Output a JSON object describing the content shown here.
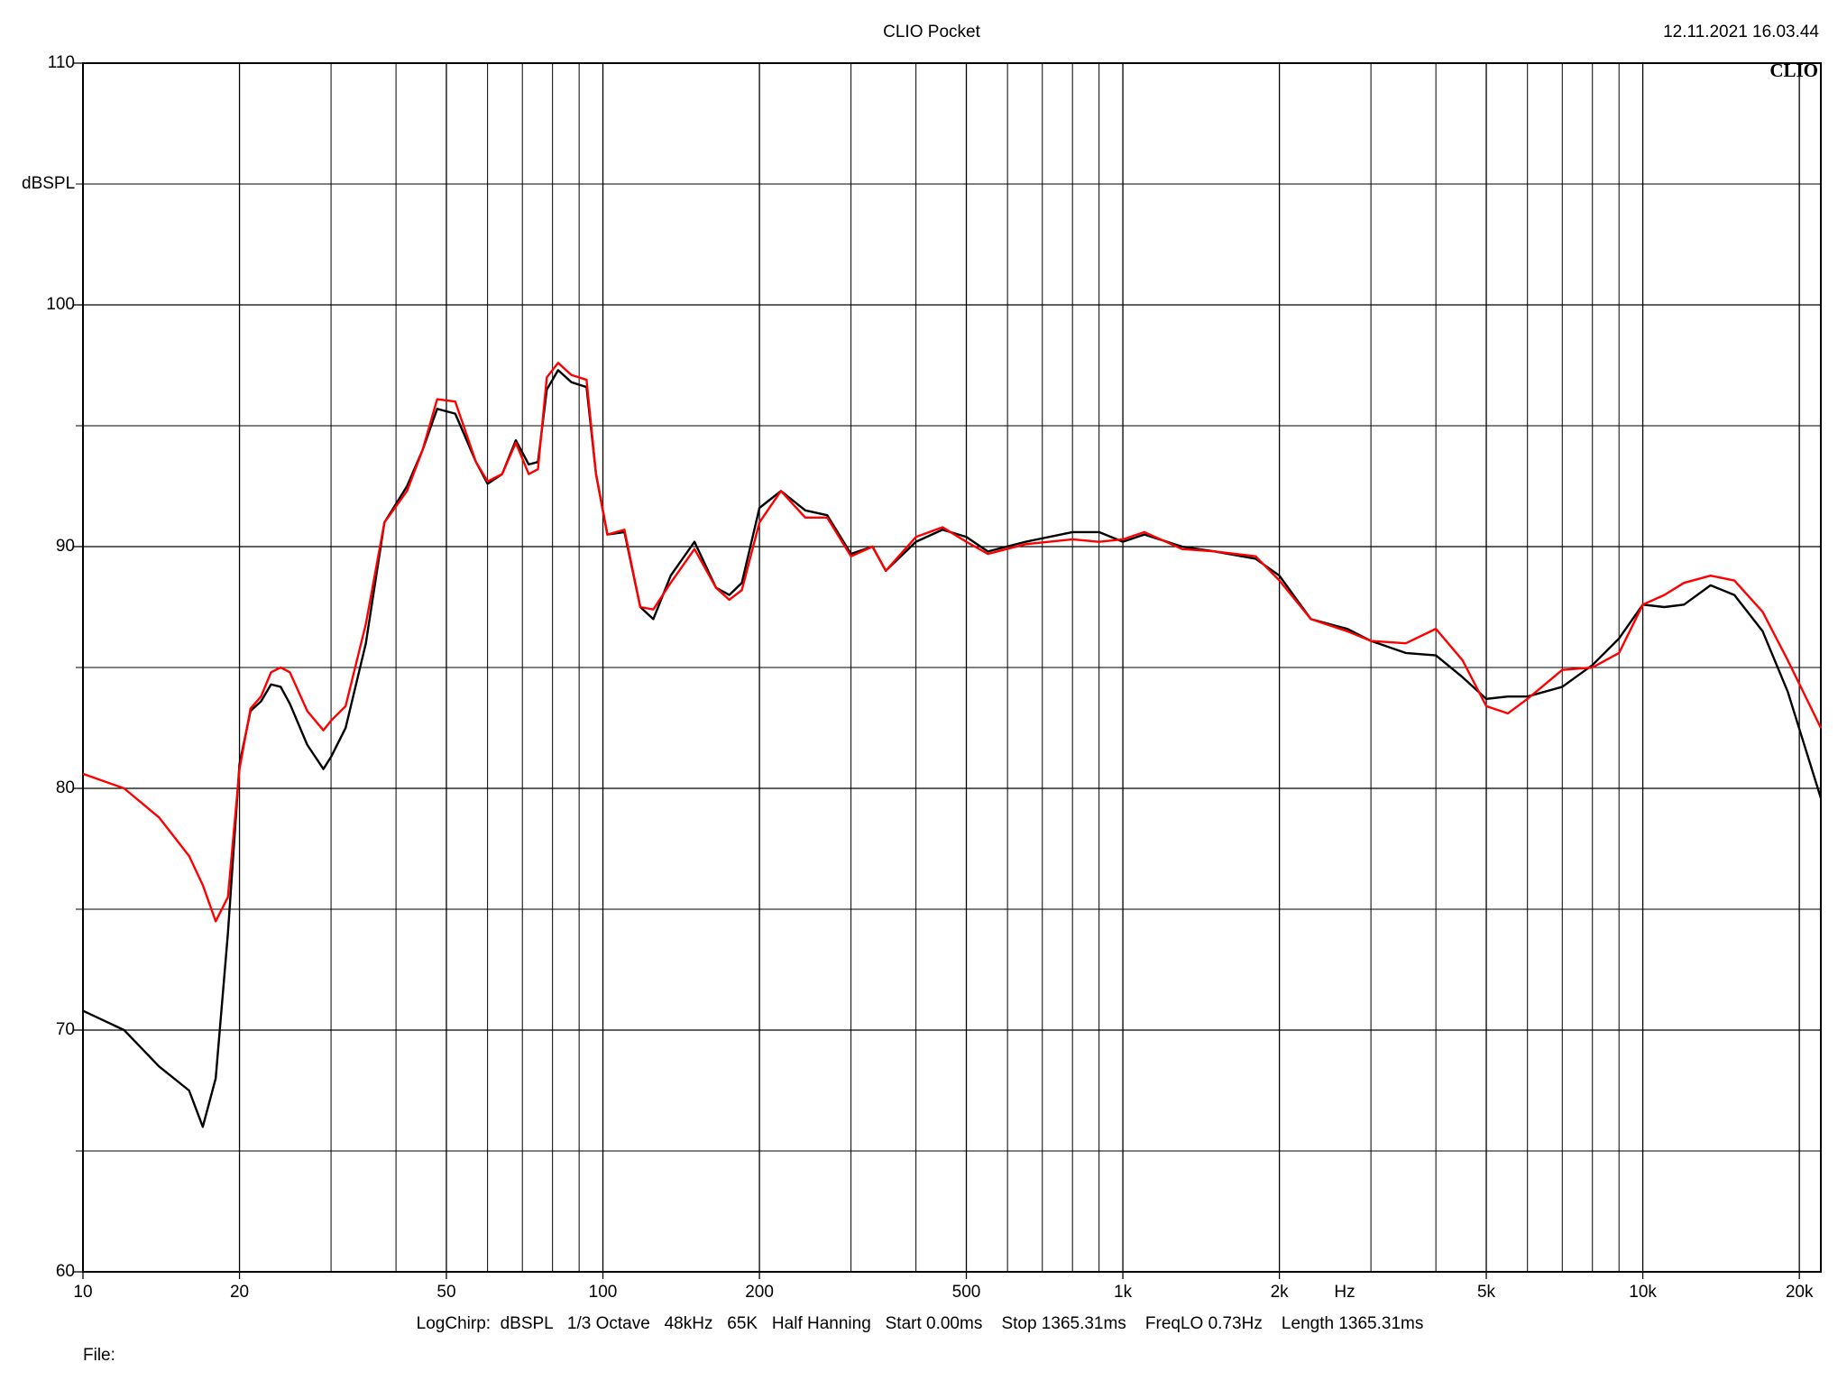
{
  "chart_data": {
    "type": "line",
    "title": "CLIO Pocket",
    "timestamp": "12.11.2021 16.03.44",
    "logo": "CLIO",
    "ylabel": "dBSPL",
    "xlabel": "Hz",
    "footer": "LogChirp:  dBSPL   1/3 Octave   48kHz   65K   Half Hanning   Start 0.00ms    Stop 1365.31ms    FreqLO 0.73Hz    Length 1365.31ms",
    "file_label": "File:",
    "xscale": "log",
    "grid": true,
    "xlim": [
      10,
      22000
    ],
    "ylim": [
      60,
      110
    ],
    "xticks": [
      10,
      20,
      50,
      100,
      200,
      500,
      {
        "value": 1000,
        "label": "1k"
      },
      {
        "value": 2000,
        "label": "2k"
      },
      {
        "value": 5000,
        "label": "5k"
      },
      {
        "value": 10000,
        "label": "10k"
      },
      {
        "value": 20000,
        "label": "20k"
      }
    ],
    "x_minor_grid": [
      30,
      40,
      60,
      70,
      80,
      90,
      300,
      400,
      600,
      700,
      800,
      900,
      3000,
      4000,
      6000,
      7000,
      8000,
      9000
    ],
    "yticks": [
      60,
      70,
      80,
      90,
      100,
      110
    ],
    "y_minor_grid": [
      65,
      75,
      85,
      95,
      105
    ],
    "x": [
      10,
      12,
      14,
      16,
      17,
      18,
      19,
      20,
      21,
      22,
      23,
      24,
      25,
      27,
      29,
      30,
      32,
      35,
      38,
      42,
      45,
      48,
      52,
      57,
      60,
      64,
      68,
      72,
      75,
      78,
      82,
      87,
      93,
      97,
      102,
      110,
      118,
      125,
      135,
      150,
      165,
      175,
      185,
      200,
      220,
      245,
      270,
      300,
      330,
      350,
      400,
      450,
      500,
      550,
      650,
      800,
      900,
      1000,
      1100,
      1300,
      1500,
      1800,
      2000,
      2300,
      2700,
      3000,
      3500,
      4000,
      4500,
      5000,
      5500,
      6000,
      7000,
      8000,
      9000,
      10000,
      11000,
      12000,
      13500,
      15000,
      17000,
      19000,
      22000
    ],
    "series": [
      {
        "color": "#000000",
        "values": [
          70.8,
          70.0,
          68.5,
          67.5,
          66.0,
          68.0,
          74.0,
          81.0,
          83.2,
          83.6,
          84.3,
          84.2,
          83.5,
          81.8,
          80.8,
          81.3,
          82.5,
          86.0,
          91.0,
          92.5,
          94.0,
          95.7,
          95.5,
          93.5,
          92.6,
          93.0,
          94.4,
          93.4,
          93.5,
          96.5,
          97.3,
          96.8,
          96.6,
          93.0,
          90.5,
          90.6,
          87.5,
          87.0,
          88.8,
          90.2,
          88.3,
          88.0,
          88.5,
          91.6,
          92.3,
          91.5,
          91.3,
          89.7,
          90.0,
          89.0,
          90.2,
          90.7,
          90.4,
          89.8,
          90.2,
          90.6,
          90.6,
          90.2,
          90.5,
          90.0,
          89.8,
          89.5,
          88.8,
          87.0,
          86.6,
          86.1,
          85.6,
          85.5,
          84.6,
          83.7,
          83.8,
          83.8,
          84.2,
          85.1,
          86.2,
          87.6,
          87.5,
          87.6,
          88.4,
          88.0,
          86.5,
          84.0,
          79.6
        ]
      },
      {
        "color": "#ff0000",
        "values": [
          80.6,
          80.0,
          78.8,
          77.2,
          76.0,
          74.5,
          75.5,
          80.8,
          83.3,
          83.8,
          84.8,
          85.0,
          84.8,
          83.2,
          82.4,
          82.8,
          83.4,
          86.8,
          91.0,
          92.3,
          94.0,
          96.1,
          96.0,
          93.5,
          92.7,
          93.0,
          94.3,
          93.0,
          93.2,
          97.0,
          97.6,
          97.1,
          96.9,
          93.0,
          90.5,
          90.7,
          87.5,
          87.4,
          88.5,
          89.9,
          88.3,
          87.8,
          88.2,
          91.0,
          92.3,
          91.2,
          91.2,
          89.6,
          90.0,
          89.0,
          90.4,
          90.8,
          90.2,
          89.7,
          90.1,
          90.3,
          90.2,
          90.3,
          90.6,
          89.9,
          89.8,
          89.6,
          88.6,
          87.0,
          86.5,
          86.1,
          86.0,
          86.6,
          85.3,
          83.4,
          83.1,
          83.7,
          84.9,
          85.0,
          85.6,
          87.6,
          88.0,
          88.5,
          88.8,
          88.6,
          87.3,
          85.3,
          82.5
        ]
      }
    ]
  }
}
